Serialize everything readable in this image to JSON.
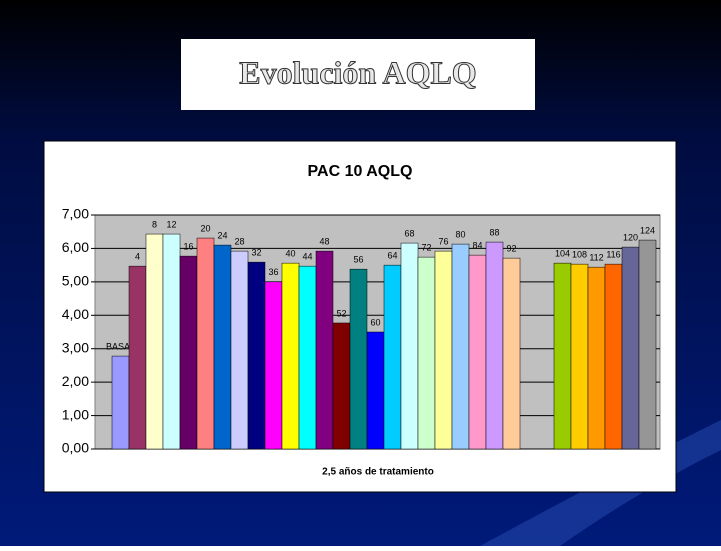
{
  "header": {
    "title": "Evolución AQLQ"
  },
  "chart_data": {
    "type": "bar",
    "title": "PAC 10 AQLQ",
    "x_label": "2,5 años de tratamiento",
    "categories": [
      "BASAL",
      "4",
      "8",
      "12",
      "16",
      "20",
      "24",
      "28",
      "32",
      "36",
      "40",
      "44",
      "48",
      "52",
      "56",
      "60",
      "64",
      "68",
      "72",
      "76",
      "80",
      "84",
      "88",
      "92",
      null,
      null,
      "104",
      "108",
      "112",
      "116",
      "120",
      "124"
    ],
    "values": [
      2.78,
      5.47,
      6.43,
      6.43,
      5.77,
      6.31,
      6.1,
      5.92,
      5.59,
      5.0,
      5.56,
      5.47,
      5.92,
      3.77,
      5.38,
      3.5,
      5.5,
      6.16,
      5.74,
      5.92,
      6.13,
      5.8,
      6.19,
      5.71,
      null,
      null,
      5.56,
      5.53,
      5.44,
      5.53,
      6.04,
      6.25
    ],
    "colors": [
      "#9999ff",
      "#993366",
      "#ffffcc",
      "#ccffff",
      "#660066",
      "#ff8080",
      "#0066cc",
      "#ccccff",
      "#000080",
      "#ff00ff",
      "#ffff00",
      "#00ffff",
      "#800080",
      "#800000",
      "#008080",
      "#0000ff",
      "#00ccff",
      "#ccffff",
      "#ccffcc",
      "#ffff99",
      "#99ccff",
      "#ff99cc",
      "#cc99ff",
      "#ffcc99",
      null,
      null,
      "#99cc00",
      "#ffcc00",
      "#ff9900",
      "#ff6600",
      "#666699",
      "#969696"
    ],
    "ylim": [
      0,
      7
    ],
    "yticks": [
      {
        "value": 0,
        "label": "0,00"
      },
      {
        "value": 1,
        "label": "1,00"
      },
      {
        "value": 2,
        "label": "2,00"
      },
      {
        "value": 3,
        "label": "3,00"
      },
      {
        "value": 4,
        "label": "4,00"
      },
      {
        "value": 5,
        "label": "5,00"
      },
      {
        "value": 6,
        "label": "6,00"
      },
      {
        "value": 7,
        "label": "7,00"
      }
    ],
    "grid": true
  }
}
